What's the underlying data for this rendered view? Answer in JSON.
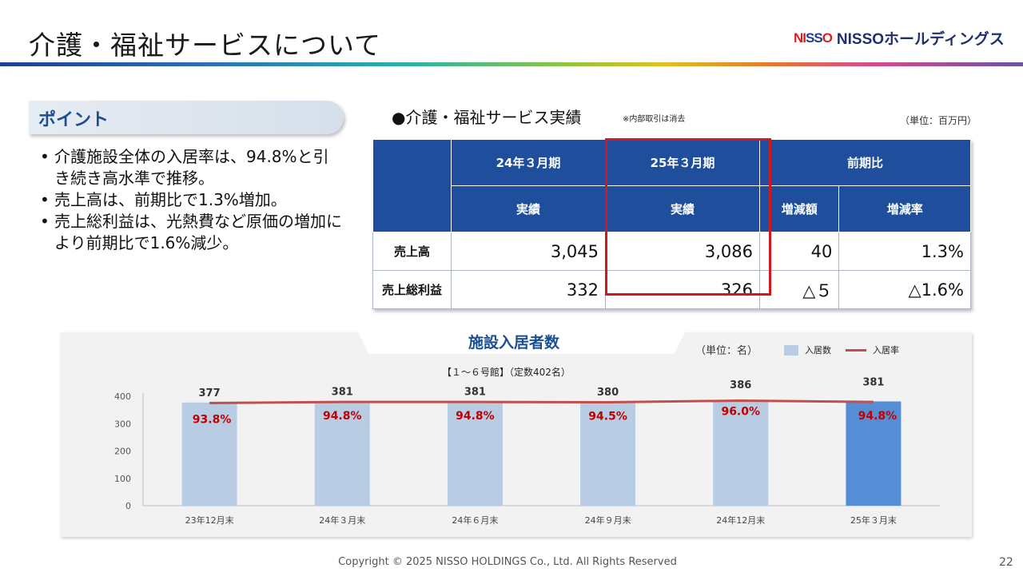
{
  "title": "介護・福祉サービスについて",
  "logo": {
    "mark_left": "NI",
    "mark_mid": "SS",
    "mark_right": "O",
    "text": "NISSOホールディングス"
  },
  "point": {
    "label": "ポイント",
    "bullets": [
      "介護施設全体の入居率は、94.8%と引き続き高水準で推移。",
      "売上高は、前期比で1.3%増加。",
      "売上総利益は、光熱費など原価の増加により前期比で1.6%減少。"
    ]
  },
  "table": {
    "title": "●介護・福祉サービス実績",
    "note": "※内部取引は消去",
    "unit": "（単位：百万円）",
    "headers": [
      "24年３月期",
      "25年３月期",
      "前期比"
    ],
    "subheaders": [
      "実績",
      "実績",
      "増減額",
      "増減率"
    ],
    "rows": [
      {
        "label": "売上高",
        "values": [
          "3,045",
          "3,086",
          "40",
          "1.3%"
        ]
      },
      {
        "label": "売上総利益",
        "values": [
          "332",
          "326",
          "△５",
          "△1.6%"
        ]
      }
    ]
  },
  "chart_title": "施設入居者数",
  "chart_unit": "（単位：名）",
  "chart_subtitle": "【１～６号館】（定数402名）",
  "chart_data": {
    "type": "bar",
    "categories": [
      "23年12月末",
      "24年３月末",
      "24年６月末",
      "24年９月末",
      "24年12月末",
      "25年３月末"
    ],
    "series": [
      {
        "name": "入居数",
        "values": [
          377,
          381,
          381,
          380,
          386,
          381
        ],
        "color": "#b8cce4",
        "highlight_color": "#558ed5"
      },
      {
        "name": "入居率",
        "values": [
          93.8,
          94.8,
          94.8,
          94.5,
          96.0,
          94.8
        ],
        "labels": [
          "93.8%",
          "94.8%",
          "94.8%",
          "94.5%",
          "96.0%",
          "94.8%"
        ],
        "color": "#c0504d"
      }
    ],
    "yticks": [
      0,
      100,
      200,
      300,
      400
    ],
    "ylim": [
      0,
      400
    ],
    "bar_labels": [
      "377",
      "381",
      "381",
      "380",
      "386",
      "381"
    ],
    "grid": false,
    "legend": "top-right"
  },
  "footer": "Copyright © 2025 NISSO HOLDINGS Co., Ltd. All Rights Reserved",
  "page_number": "22"
}
